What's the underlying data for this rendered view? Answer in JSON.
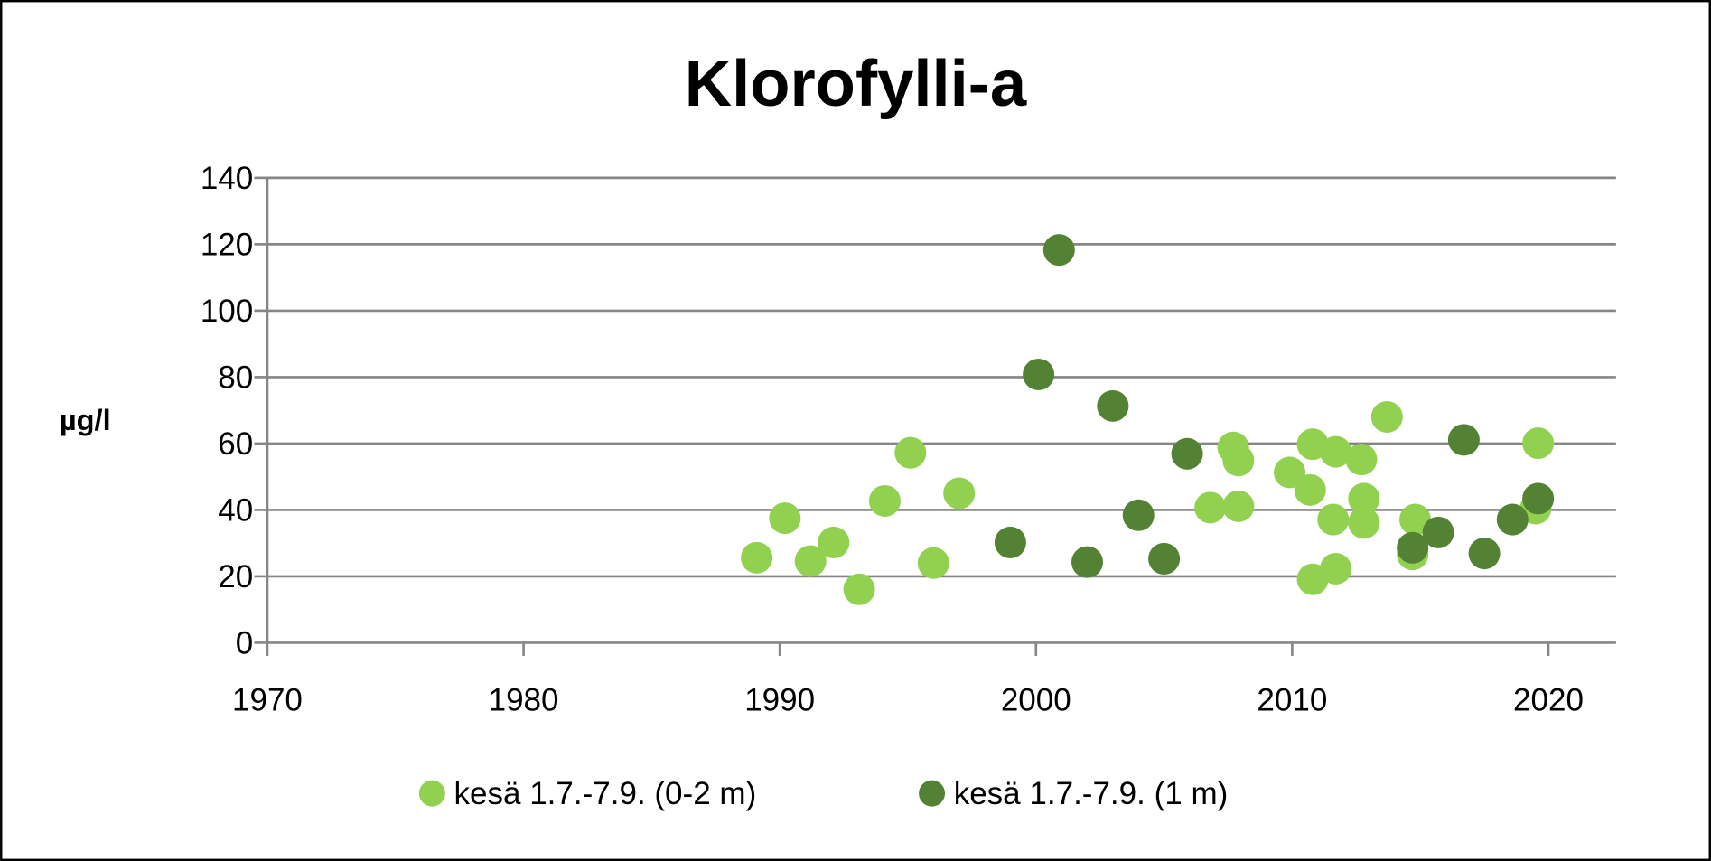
{
  "chart_data": {
    "type": "scatter",
    "title": "Klorofylli-a",
    "xlabel": "",
    "ylabel": "µg/l",
    "xlim": [
      1970,
      2022.6
    ],
    "ylim": [
      0,
      140
    ],
    "x_ticks": [
      1970,
      1980,
      1990,
      2000,
      2010,
      2020
    ],
    "y_ticks": [
      0,
      20,
      40,
      60,
      80,
      100,
      120,
      140
    ],
    "grid": true,
    "legend_position": "bottom",
    "series": [
      {
        "name": "kesä 1.7.-7.9. (0-2 m)",
        "color": "#92d050",
        "points": [
          [
            1989.1,
            25.6
          ],
          [
            1990.2,
            37.5
          ],
          [
            1991.2,
            24.6
          ],
          [
            1992.1,
            30.2
          ],
          [
            1993.1,
            16.1
          ],
          [
            1994.1,
            42.7
          ],
          [
            1995.1,
            57.2
          ],
          [
            1996.0,
            24.0
          ],
          [
            1997.0,
            45.0
          ],
          [
            2006.8,
            40.7
          ],
          [
            2007.7,
            58.8
          ],
          [
            2007.9,
            54.9
          ],
          [
            2007.9,
            41.1
          ],
          [
            2009.9,
            51.3
          ],
          [
            2010.8,
            59.8
          ],
          [
            2010.7,
            46.0
          ],
          [
            2010.8,
            19.1
          ],
          [
            2011.7,
            57.5
          ],
          [
            2011.6,
            37.1
          ],
          [
            2011.7,
            22.3
          ],
          [
            2012.7,
            55.2
          ],
          [
            2012.8,
            43.4
          ],
          [
            2012.8,
            36.1
          ],
          [
            2013.7,
            68.0
          ],
          [
            2014.8,
            37.1
          ],
          [
            2014.7,
            26.6
          ],
          [
            2019.6,
            60.1
          ],
          [
            2019.5,
            40.4
          ]
        ]
      },
      {
        "name": "kesä 1.7.-7.9. (1 m)",
        "color": "#548235",
        "points": [
          [
            1999.0,
            30.2
          ],
          [
            2000.1,
            80.8
          ],
          [
            2000.9,
            118.3
          ],
          [
            2002.0,
            24.3
          ],
          [
            2003.0,
            71.3
          ],
          [
            2004.0,
            38.4
          ],
          [
            2005.0,
            25.3
          ],
          [
            2005.9,
            56.9
          ],
          [
            2014.7,
            28.6
          ],
          [
            2015.7,
            33.2
          ],
          [
            2016.7,
            61.1
          ],
          [
            2017.5,
            26.9
          ],
          [
            2018.6,
            37.1
          ],
          [
            2019.6,
            43.4
          ]
        ]
      }
    ]
  }
}
